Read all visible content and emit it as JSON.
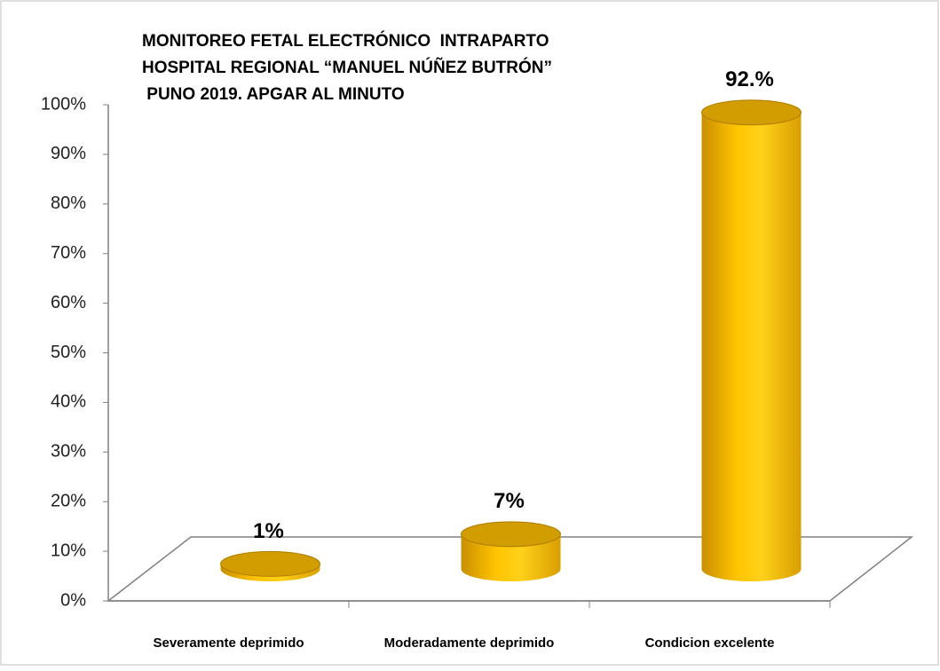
{
  "chart_data": {
    "type": "bar3d",
    "title": [
      "MONITOREO FETAL ELECTRÓNICO  INTRAPARTO",
      "HOSPITAL REGIONAL “MANUEL NÚÑEZ BUTRÓN”",
      " PUNO 2019. APGAR AL MINUTO"
    ],
    "categories": [
      "Severamente deprimido",
      "Moderadamente deprimido",
      "Condicion excelente"
    ],
    "values": [
      1,
      7,
      92
    ],
    "value_labels": [
      "1%",
      "7%",
      "92.%"
    ],
    "color": "#ffc000",
    "ylim": [
      0,
      100
    ],
    "yticks": [
      {
        "value": 0,
        "label": "0%"
      },
      {
        "value": 10,
        "label": "10%"
      },
      {
        "value": 20,
        "label": "20%"
      },
      {
        "value": 30,
        "label": "30%"
      },
      {
        "value": 40,
        "label": "40%"
      },
      {
        "value": 50,
        "label": "50%"
      },
      {
        "value": 60,
        "label": "60%"
      },
      {
        "value": 70,
        "label": "70%"
      },
      {
        "value": 80,
        "label": "80%"
      },
      {
        "value": 90,
        "label": "90%"
      },
      {
        "value": 100,
        "label": "100%"
      }
    ]
  }
}
